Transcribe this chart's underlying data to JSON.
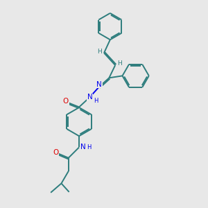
{
  "bg_color": "#e8e8e8",
  "bond_color": "#2d7d7d",
  "N_color": "#0000ee",
  "O_color": "#dd0000",
  "lw": 1.4,
  "dbo": 0.06,
  "figsize": [
    3.0,
    3.0
  ],
  "dpi": 100,
  "xlim": [
    0,
    10
  ],
  "ylim": [
    0,
    10
  ]
}
